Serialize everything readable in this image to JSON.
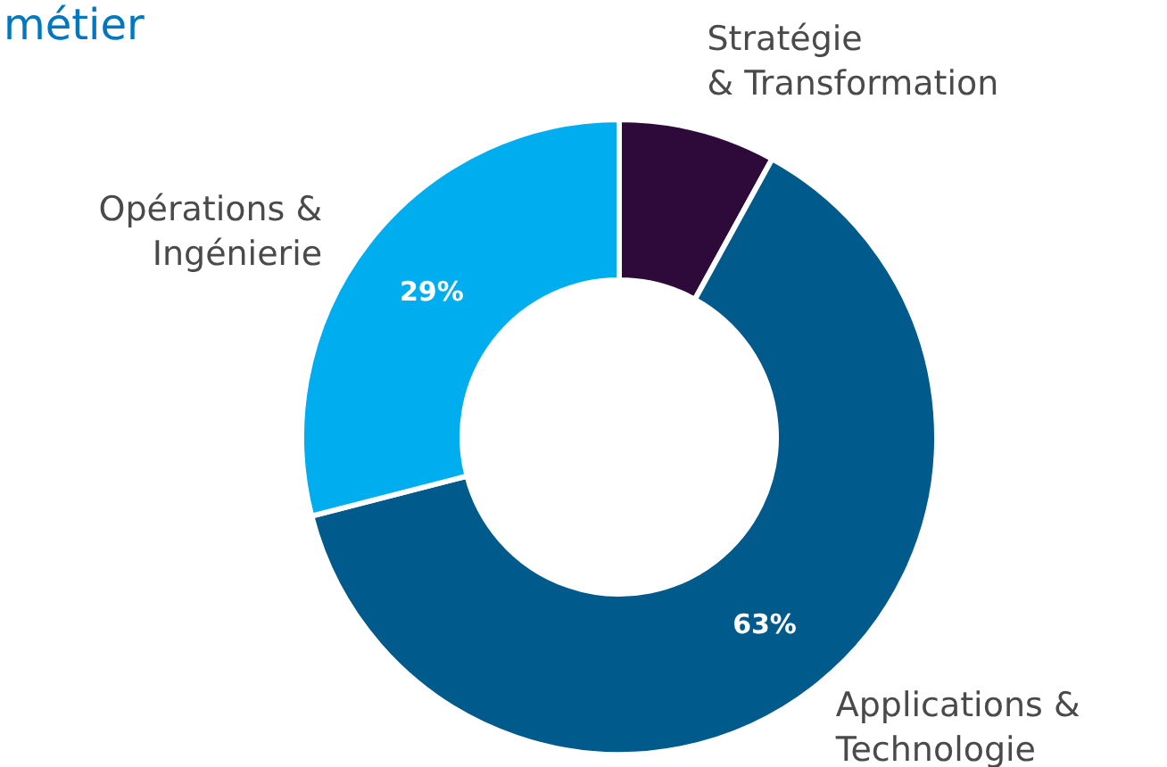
{
  "chart_data": {
    "type": "donut",
    "title": "métier",
    "categories": [
      "Stratégie\n& Transformation",
      "Applications &\nTechnologie",
      "Opérations &\nIngénierie"
    ],
    "values": [
      8,
      63,
      29
    ],
    "value_labels": [
      null,
      "63%",
      "29%"
    ],
    "colors": [
      "#2e0a3a",
      "#005a8c",
      "#00aeef"
    ]
  }
}
